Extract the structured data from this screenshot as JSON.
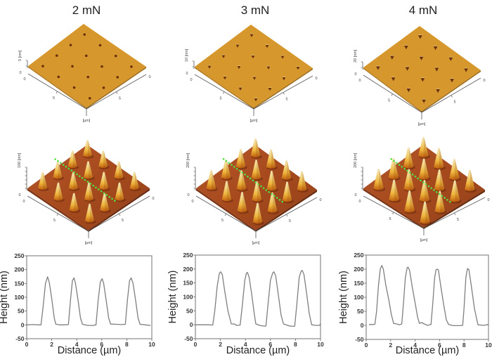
{
  "figure": {
    "columns": [
      {
        "force_label": "2 mN"
      },
      {
        "force_label": "3 mN"
      },
      {
        "force_label": "4 mN"
      }
    ]
  },
  "colors": {
    "indent_surface": "#d6972c",
    "indent_mark": "#6a300e",
    "cone_substrate": "#a64a1e",
    "cone_top": "#f3e4b6",
    "cone_mid": "#eeb43a",
    "cone_base": "#c2600f",
    "scan_line": "#55e040",
    "profile_line": "#7f7f7f",
    "plot_frame": "#8a8a8a"
  },
  "afm_panels": {
    "indent_maps": [
      {
        "z_axis_label": "5 [nm]",
        "z_min": "0",
        "x_start": "0",
        "x_mid": "5",
        "unit": "[µm]",
        "y_mid": "5",
        "y_end": "0",
        "indent_grid": [
          4,
          4
        ]
      },
      {
        "z_axis_label": "10 [nm]",
        "z_min": "0",
        "x_start": "0",
        "x_mid": "5",
        "unit": "[µm]",
        "y_mid": "5",
        "y_end": "0",
        "indent_grid": [
          4,
          4
        ]
      },
      {
        "z_axis_label": "20 [nm]",
        "z_min": "0",
        "x_start": "0",
        "x_mid": "5",
        "unit": "[µm]",
        "y_mid": "5",
        "y_end": "0",
        "indent_grid": [
          4,
          4
        ]
      }
    ],
    "cone_maps": [
      {
        "z_axis_label": "100 [nm]",
        "z_min": "0",
        "x_start": "0",
        "x_mid": "5",
        "unit": "[µm]",
        "y_mid": "5",
        "y_end": "0",
        "cone_grid": [
          4,
          4
        ]
      },
      {
        "z_axis_label": "200 [nm]",
        "z_min": "0",
        "x_start": "0",
        "x_mid": "5",
        "unit": "[µm]",
        "y_mid": "5",
        "y_end": "0",
        "cone_grid": [
          4,
          4
        ]
      },
      {
        "z_axis_label": "200 [nm]",
        "z_min": "0",
        "x_start": "0",
        "x_mid": "5",
        "unit": "[µm]",
        "y_mid": "5",
        "y_end": "0",
        "cone_grid": [
          4,
          4
        ]
      }
    ]
  },
  "chart_data": [
    {
      "type": "line",
      "title": "2 mN",
      "xlabel": "Distance (µm)",
      "ylabel": "Height (nm)",
      "xlim": [
        0,
        10
      ],
      "ylim": [
        -50,
        250
      ],
      "xticks": [
        0,
        2,
        4,
        6,
        8,
        10
      ],
      "yticks": [
        -50,
        0,
        50,
        100,
        150,
        200,
        250
      ],
      "grid": false,
      "legend": "none",
      "series": [
        {
          "name": "height profile",
          "x": [
            0,
            0.5,
            1.0,
            1.14,
            1.3,
            1.5,
            1.67,
            1.8,
            2.0,
            2.2,
            2.32,
            2.6,
            3.0,
            3.33,
            3.5,
            3.65,
            3.78,
            3.9,
            4.1,
            4.3,
            4.46,
            4.9,
            5.3,
            5.54,
            5.7,
            5.88,
            6.03,
            6.15,
            6.35,
            6.55,
            6.7,
            7.2,
            7.6,
            7.88,
            8.05,
            8.22,
            8.35,
            8.5,
            8.7,
            8.9,
            9.06,
            9.5,
            9.9
          ],
          "y": [
            0,
            1,
            0,
            0,
            60,
            150,
            174,
            155,
            95,
            25,
            3,
            0,
            0,
            1,
            90,
            160,
            170,
            150,
            90,
            25,
            2,
            -2,
            -2,
            0,
            85,
            155,
            167,
            150,
            90,
            25,
            3,
            2,
            1,
            2,
            90,
            160,
            170,
            150,
            90,
            25,
            2,
            0,
            -2
          ]
        }
      ]
    },
    {
      "type": "line",
      "title": "3 mN",
      "xlabel": "Distance (µm)",
      "ylabel": "Height (nm)",
      "xlim": [
        0,
        10
      ],
      "ylim": [
        -50,
        250
      ],
      "xticks": [
        0,
        2,
        4,
        6,
        8,
        10
      ],
      "yticks": [
        -50,
        0,
        50,
        100,
        150,
        200,
        250
      ],
      "grid": false,
      "legend": "none",
      "series": [
        {
          "name": "height profile",
          "x": [
            0,
            0.5,
            1.0,
            1.39,
            1.55,
            1.75,
            1.92,
            2.02,
            2.15,
            2.35,
            2.6,
            2.87,
            3.1,
            3.3,
            3.58,
            3.75,
            3.95,
            4.08,
            4.16,
            4.3,
            4.5,
            4.7,
            4.83,
            5.2,
            5.54,
            5.64,
            5.8,
            6.0,
            6.18,
            6.28,
            6.42,
            6.65,
            6.85,
            7.04,
            7.5,
            7.88,
            7.94,
            8.1,
            8.3,
            8.45,
            8.54,
            8.68,
            8.9,
            9.1,
            9.29,
            9.6,
            9.95,
            10
          ],
          "y": [
            0,
            0,
            0,
            -1,
            50,
            140,
            185,
            190,
            180,
            120,
            50,
            3,
            3,
            -2,
            -1,
            70,
            160,
            185,
            188,
            170,
            110,
            40,
            3,
            -3,
            -5,
            -4,
            70,
            160,
            186,
            190,
            175,
            100,
            35,
            3,
            -4,
            -6,
            -5,
            70,
            170,
            192,
            195,
            180,
            110,
            40,
            0,
            -2,
            -2,
            5
          ]
        }
      ]
    },
    {
      "type": "line",
      "title": "4 mN",
      "xlabel": "Distance (µm)",
      "ylabel": "Height (nm)",
      "xlim": [
        0,
        10
      ],
      "ylim": [
        -50,
        250
      ],
      "xticks": [
        0,
        2,
        4,
        6,
        8,
        10
      ],
      "yticks": [
        -50,
        0,
        50,
        100,
        150,
        200,
        250
      ],
      "grid": false,
      "legend": "none",
      "series": [
        {
          "name": "height profile",
          "x": [
            0.23,
            0.5,
            0.71,
            0.85,
            1.0,
            1.15,
            1.28,
            1.4,
            1.6,
            1.85,
            2.05,
            2.24,
            2.5,
            2.72,
            2.91,
            3.05,
            3.2,
            3.35,
            3.43,
            3.55,
            3.75,
            4.0,
            4.2,
            4.35,
            4.54,
            4.75,
            5.02,
            5.3,
            5.45,
            5.6,
            5.72,
            5.79,
            5.9,
            6.1,
            6.35,
            6.55,
            6.74,
            7.1,
            7.6,
            7.89,
            8.0,
            8.15,
            8.28,
            8.4,
            8.6,
            8.85,
            9.14,
            9.6,
            10
          ],
          "y": [
            3,
            3,
            4,
            50,
            140,
            200,
            213,
            200,
            145,
            90,
            40,
            7,
            5,
            2,
            5,
            80,
            170,
            205,
            207,
            195,
            140,
            80,
            30,
            7,
            10,
            5,
            0,
            3,
            80,
            170,
            198,
            200,
            198,
            140,
            70,
            20,
            3,
            -1,
            -1,
            0,
            60,
            170,
            202,
            198,
            140,
            60,
            2,
            0,
            3
          ]
        }
      ]
    }
  ]
}
